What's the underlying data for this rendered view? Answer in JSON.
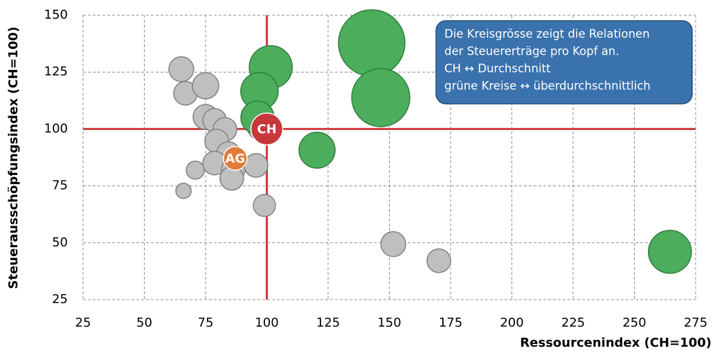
{
  "chart_data": {
    "type": "bubble",
    "xlabel": "Ressourcenindex (CH=100)",
    "ylabel": "Steuerausschöpfungsindex (CH=100)",
    "xlim": [
      25,
      275
    ],
    "xticks": [
      25,
      50,
      75,
      100,
      125,
      150,
      175,
      200,
      225,
      250,
      275
    ],
    "ylim": [
      25,
      150
    ],
    "yticks": [
      25,
      50,
      75,
      100,
      125,
      150
    ],
    "grid": true,
    "reference_lines": {
      "x": 100,
      "y": 100,
      "color": "#d03a3a"
    },
    "annotation": {
      "lines": [
        "Die Kreisgrösse zeigt die Relationen",
        "der Steuererträge pro Kopf an.",
        "CH ↔ Durchschnitt",
        "grüne Kreise ↔ überdurchschnittlich"
      ],
      "color": "#3a72ad"
    },
    "series": [
      {
        "color": "#bfbfbf",
        "stroke": "#808080",
        "x": [
          65.1,
          66.8,
          75,
          75,
          78.7,
          82.9,
          79.5,
          84.3,
          78.7,
          86.3,
          85.7,
          70.8,
          66,
          95.6,
          97,
          99,
          151.6,
          170.2
        ],
        "values": [
          126.3,
          115.7,
          119,
          105.3,
          103.8,
          99.8,
          94.7,
          89.2,
          85,
          82.2,
          78.3,
          81.9,
          72.8,
          84,
          100.5,
          66.4,
          49.4,
          42.1
        ],
        "sizes": [
          61,
          55,
          68,
          61,
          55,
          55,
          55,
          55,
          55,
          55,
          55,
          32,
          23,
          55,
          55,
          48,
          61,
          55
        ]
      },
      {
        "color": "#4cad5c",
        "stroke": "#2f7d3c",
        "x": [
          101.6,
          97,
          96.2,
          120.5,
          142.8,
          146.5,
          264.5
        ],
        "values": [
          127.2,
          116.6,
          105,
          90.7,
          137.8,
          113.8,
          46
        ],
        "sizes": [
          182,
          138,
          109,
          128,
          436,
          333,
          182
        ]
      },
      {
        "color": "#c8373b",
        "stroke": "#ffffff",
        "x": [
          100
        ],
        "values": [
          100
        ],
        "sizes": [
          100
        ],
        "labels": [
          "CH"
        ]
      },
      {
        "color": "#e07b39",
        "stroke": "#ffffff",
        "x": [
          87.1
        ],
        "values": [
          87.1
        ],
        "sizes": [
          55
        ],
        "labels": [
          "AG"
        ]
      }
    ]
  }
}
